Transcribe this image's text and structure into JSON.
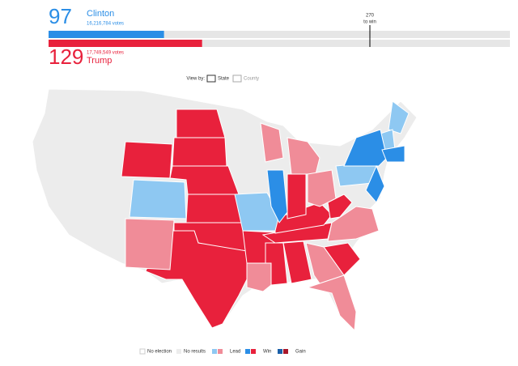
{
  "header": {
    "clinton": {
      "electoral": 97,
      "name": "Clinton",
      "votes": "16,216,784 votes"
    },
    "trump": {
      "electoral": 129,
      "name": "Trump",
      "votes": "17,749,549 votes"
    },
    "threshold": {
      "value": 270,
      "label": "to win"
    }
  },
  "view_by": {
    "label": "View by:",
    "options": [
      "State",
      "County"
    ]
  },
  "legend": [
    "No election",
    "No results",
    "Lead",
    "Win",
    "Gain"
  ]
}
